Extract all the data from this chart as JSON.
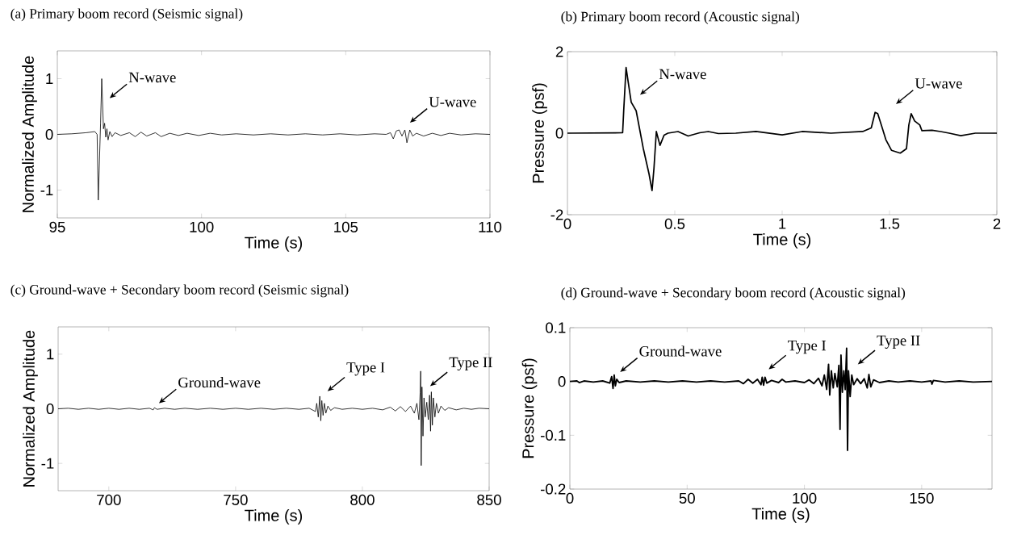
{
  "chart_data": [
    {
      "type": "line",
      "title": "(a) Primary boom record (Seismic signal)",
      "xlabel": "Time (s)",
      "ylabel": "Normalized Amplitude",
      "color": "#000000",
      "xlim": [
        95,
        110
      ],
      "ylim": [
        -1.5,
        1.5
      ],
      "xticks": [
        95,
        100,
        105,
        110
      ],
      "yticks": [
        -1,
        0,
        1
      ],
      "x": [
        95.0,
        95.5,
        96.0,
        96.3,
        96.38,
        96.42,
        96.5,
        96.54,
        96.6,
        96.64,
        96.68,
        96.72,
        96.76,
        96.82,
        96.9,
        97.0,
        97.2,
        97.5,
        97.7,
        97.9,
        98.1,
        98.4,
        98.6,
        98.9,
        99.2,
        99.5,
        99.9,
        100.3,
        100.7,
        101.2,
        101.8,
        102.4,
        103,
        103.6,
        104.2,
        104.8,
        105.4,
        106,
        106.4,
        106.55,
        106.65,
        106.75,
        106.85,
        106.95,
        107.05,
        107.12,
        107.22,
        107.32,
        107.45,
        107.7,
        108,
        108.3,
        108.6,
        109,
        109.5,
        110
      ],
      "values": [
        0,
        0.01,
        0.03,
        0.05,
        0.0,
        -1.18,
        0.2,
        1.0,
        0.1,
        0.2,
        -0.05,
        0.1,
        -0.1,
        0.05,
        -0.04,
        0.03,
        -0.02,
        0.03,
        -0.04,
        0.04,
        -0.03,
        0.03,
        -0.04,
        0.02,
        -0.02,
        0.02,
        -0.02,
        0.02,
        -0.01,
        0.01,
        -0.01,
        0.01,
        -0.01,
        0.01,
        -0.01,
        0.01,
        -0.01,
        0.01,
        0.0,
        0.03,
        -0.08,
        0.06,
        0.08,
        -0.03,
        0.08,
        -0.15,
        0.08,
        -0.03,
        0.02,
        -0.03,
        0.02,
        -0.02,
        0.02,
        -0.01,
        0.01,
        0
      ],
      "annotations": [
        "N-wave",
        "U-wave"
      ]
    },
    {
      "type": "line",
      "title": "(b) Primary boom record (Acoustic signal)",
      "xlabel": "Time (s)",
      "ylabel": "Pressure (psf)",
      "color": "#000000",
      "xlim": [
        0,
        2
      ],
      "ylim": [
        -2,
        2
      ],
      "xticks": [
        0,
        0.5,
        1,
        1.5,
        2
      ],
      "yticks": [
        -2,
        0,
        2
      ],
      "x": [
        0,
        0.257,
        0.262,
        0.273,
        0.28,
        0.297,
        0.32,
        0.353,
        0.38,
        0.394,
        0.403,
        0.414,
        0.431,
        0.45,
        0.468,
        0.515,
        0.562,
        0.616,
        0.656,
        0.703,
        0.784,
        0.878,
        1.0,
        1.093,
        1.227,
        1.375,
        1.415,
        1.433,
        1.445,
        1.462,
        1.483,
        1.509,
        1.55,
        1.579,
        1.59,
        1.601,
        1.617,
        1.641,
        1.651,
        1.698,
        1.738,
        1.778,
        1.832,
        1.9,
        2
      ],
      "values": [
        0,
        0.01,
        0.55,
        1.61,
        1.36,
        0.76,
        0.55,
        -0.37,
        -1.0,
        -1.41,
        -0.86,
        0.04,
        -0.3,
        -0.05,
        0,
        0.04,
        -0.07,
        0.01,
        0.04,
        -0.01,
        0,
        0.04,
        -0.04,
        0.04,
        0,
        0.04,
        0.13,
        0.51,
        0.48,
        0.2,
        -0.16,
        -0.42,
        -0.49,
        -0.38,
        0.2,
        0.48,
        0.3,
        0.2,
        0.06,
        0.07,
        0.04,
        0,
        -0.06,
        0,
        0
      ],
      "annotations": [
        "N-wave",
        "U-wave"
      ]
    },
    {
      "type": "line",
      "title": "(c) Ground-wave + Secondary boom record (Seismic signal)",
      "xlabel": "Time (s)",
      "ylabel": "Normalized Amplitude",
      "color": "#000000",
      "xlim": [
        680,
        850
      ],
      "ylim": [
        -1.5,
        1.5
      ],
      "xticks": [
        700,
        750,
        800,
        850
      ],
      "yticks": [
        -1,
        0,
        1
      ],
      "x": [
        680,
        684,
        688,
        692,
        696,
        700,
        704,
        708,
        712,
        716,
        717.5,
        718,
        719,
        722,
        726,
        730,
        735,
        740,
        745,
        750,
        755,
        760,
        765,
        770,
        775,
        779,
        781.5,
        782,
        782.6,
        783.2,
        783.6,
        784,
        784.5,
        785,
        785.6,
        786.4,
        787.5,
        789,
        792,
        796,
        800,
        804,
        808,
        811,
        813,
        815,
        817,
        819,
        820.5,
        821.5,
        822.3,
        822.8,
        823.0,
        823.2,
        823.5,
        823.9,
        824.3,
        824.8,
        825.4,
        826,
        826.5,
        826.9,
        827.2,
        827.6,
        828,
        828.6,
        829.2,
        830,
        831,
        832.5,
        834,
        837,
        840,
        843,
        846,
        850
      ],
      "values": [
        0,
        0.01,
        -0.01,
        0.01,
        -0.01,
        0.01,
        -0.01,
        0.01,
        -0.01,
        0.01,
        -0.02,
        0.02,
        -0.01,
        0.01,
        -0.01,
        0.01,
        -0.01,
        0.01,
        -0.01,
        0.01,
        -0.01,
        0.01,
        -0.01,
        0.01,
        -0.01,
        0.01,
        -0.05,
        0.1,
        -0.15,
        0.23,
        -0.22,
        0.15,
        -0.12,
        0.1,
        -0.08,
        0.05,
        -0.03,
        0.02,
        -0.01,
        0.01,
        -0.01,
        0.01,
        -0.02,
        0.03,
        -0.04,
        0.04,
        -0.05,
        0.05,
        -0.08,
        0.1,
        -0.2,
        0.3,
        0.69,
        -1.04,
        0.4,
        -0.5,
        0.2,
        -0.15,
        0.12,
        -0.2,
        0.25,
        -0.41,
        0.31,
        -0.3,
        0.2,
        -0.15,
        0.1,
        -0.08,
        0.05,
        -0.03,
        0.02,
        -0.02,
        0.01,
        -0.01,
        0.01,
        0
      ],
      "annotations": [
        "Ground-wave",
        "Type I",
        "Type II"
      ]
    },
    {
      "type": "line",
      "title": "(d) Ground-wave + Secondary boom record (Acoustic signal)",
      "xlabel": "Time (s)",
      "ylabel": "Pressure (psf)",
      "color": "#000000",
      "xlim": [
        0,
        180
      ],
      "ylim": [
        -0.2,
        0.1
      ],
      "xticks": [
        0,
        50,
        100,
        150
      ],
      "yticks": [
        -0.2,
        -0.1,
        0,
        0.1
      ],
      "x": [
        0,
        3,
        4,
        6,
        10,
        14,
        17,
        17.8,
        18.4,
        18.9,
        19.4,
        20,
        21,
        24,
        30,
        36,
        42,
        48,
        54,
        60,
        66,
        72,
        74,
        76,
        78,
        80,
        81.5,
        82,
        82.6,
        83.2,
        84,
        86,
        89,
        90.5,
        92,
        96,
        100,
        102,
        104,
        106,
        107.5,
        108.5,
        109.5,
        110.3,
        110.8,
        111.5,
        112.3,
        113,
        114,
        114.7,
        115.2,
        115.6,
        116.2,
        116.8,
        117.4,
        118,
        118.4,
        118.8,
        119.5,
        120.2,
        121,
        122.5,
        124,
        125.5,
        126.8,
        127.5,
        128.3,
        129.5,
        132,
        136,
        140,
        145,
        150,
        154,
        154.4,
        155,
        160,
        166,
        172,
        180
      ],
      "values": [
        0,
        0.001,
        -0.002,
        0.001,
        -0.001,
        0.001,
        -0.003,
        0.009,
        -0.013,
        0.012,
        -0.008,
        0.004,
        -0.002,
        0.001,
        -0.001,
        0.001,
        -0.001,
        0.001,
        -0.001,
        0.001,
        -0.001,
        0.001,
        -0.004,
        0.004,
        -0.003,
        0.004,
        -0.006,
        0.008,
        -0.007,
        0.008,
        -0.003,
        0.002,
        -0.002,
        0.004,
        -0.001,
        0.001,
        -0.002,
        0.003,
        -0.004,
        0.006,
        -0.008,
        0.012,
        -0.015,
        0.032,
        -0.025,
        0.02,
        -0.012,
        0.015,
        -0.01,
        0.03,
        -0.089,
        0.049,
        -0.02,
        0.02,
        -0.015,
        0.062,
        -0.128,
        0.02,
        -0.028,
        0.012,
        -0.006,
        0.005,
        -0.004,
        0.005,
        -0.012,
        0.013,
        -0.01,
        0.003,
        -0.002,
        0.001,
        -0.001,
        0.001,
        -0.001,
        0.001,
        -0.005,
        0.002,
        -0.001,
        0.001,
        -0.001,
        0
      ],
      "annotations": [
        "Ground-wave",
        "Type I",
        "Type II"
      ]
    }
  ]
}
